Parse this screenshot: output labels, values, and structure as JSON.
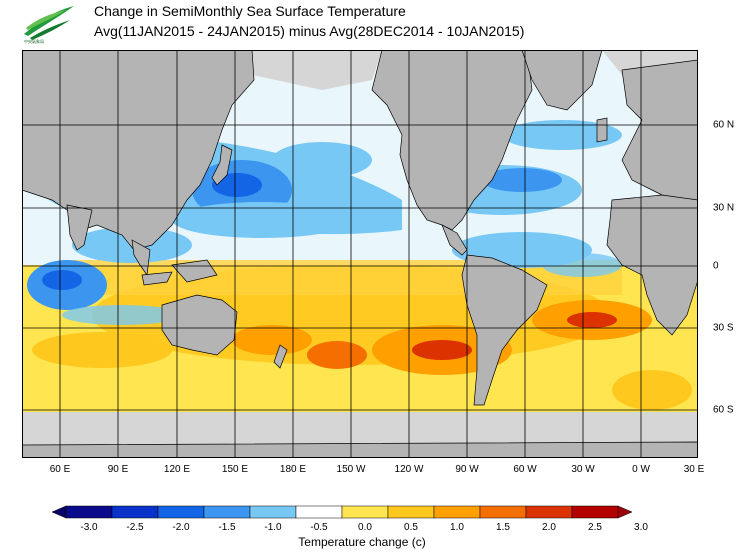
{
  "header": {
    "logo": "cwb-leaf-logo",
    "logo_caption": "中央氣象局",
    "title_line1": "Change in SemiMonthly Sea Surface Temperature",
    "title_line2": "Avg(11JAN2015 - 24JAN2015) minus Avg(28DEC2014 - 10JAN2015)"
  },
  "map": {
    "lon_labels": [
      "60 E",
      "90 E",
      "120 E",
      "150 E",
      "180 E",
      "150 W",
      "120 W",
      "90 W",
      "60 W",
      "30 W",
      "0 W",
      "30 E"
    ],
    "lat_labels": [
      "60 N",
      "30 N",
      "0",
      "30 S",
      "60 S"
    ],
    "colors": {
      "land": "#b4b4b4",
      "ice": "#d6d6d6",
      "grid": "#000000"
    }
  },
  "colorbar": {
    "title": "Temperature change  (c)",
    "tick_labels": [
      "-3.0",
      "-2.5",
      "-2.0",
      "-1.5",
      "-1.0",
      "-0.5",
      "0.0",
      "0.5",
      "1.0",
      "1.5",
      "2.0",
      "2.5",
      "3.0"
    ],
    "colors": [
      "#0a0a8c",
      "#0a32c8",
      "#1464e6",
      "#3c96f0",
      "#78c8f5",
      "#ffffff",
      "#ffe650",
      "#ffc81e",
      "#ffa000",
      "#f56e00",
      "#dc3200",
      "#b40000"
    ],
    "under_color": "#06066a",
    "over_color": "#a0000a"
  }
}
